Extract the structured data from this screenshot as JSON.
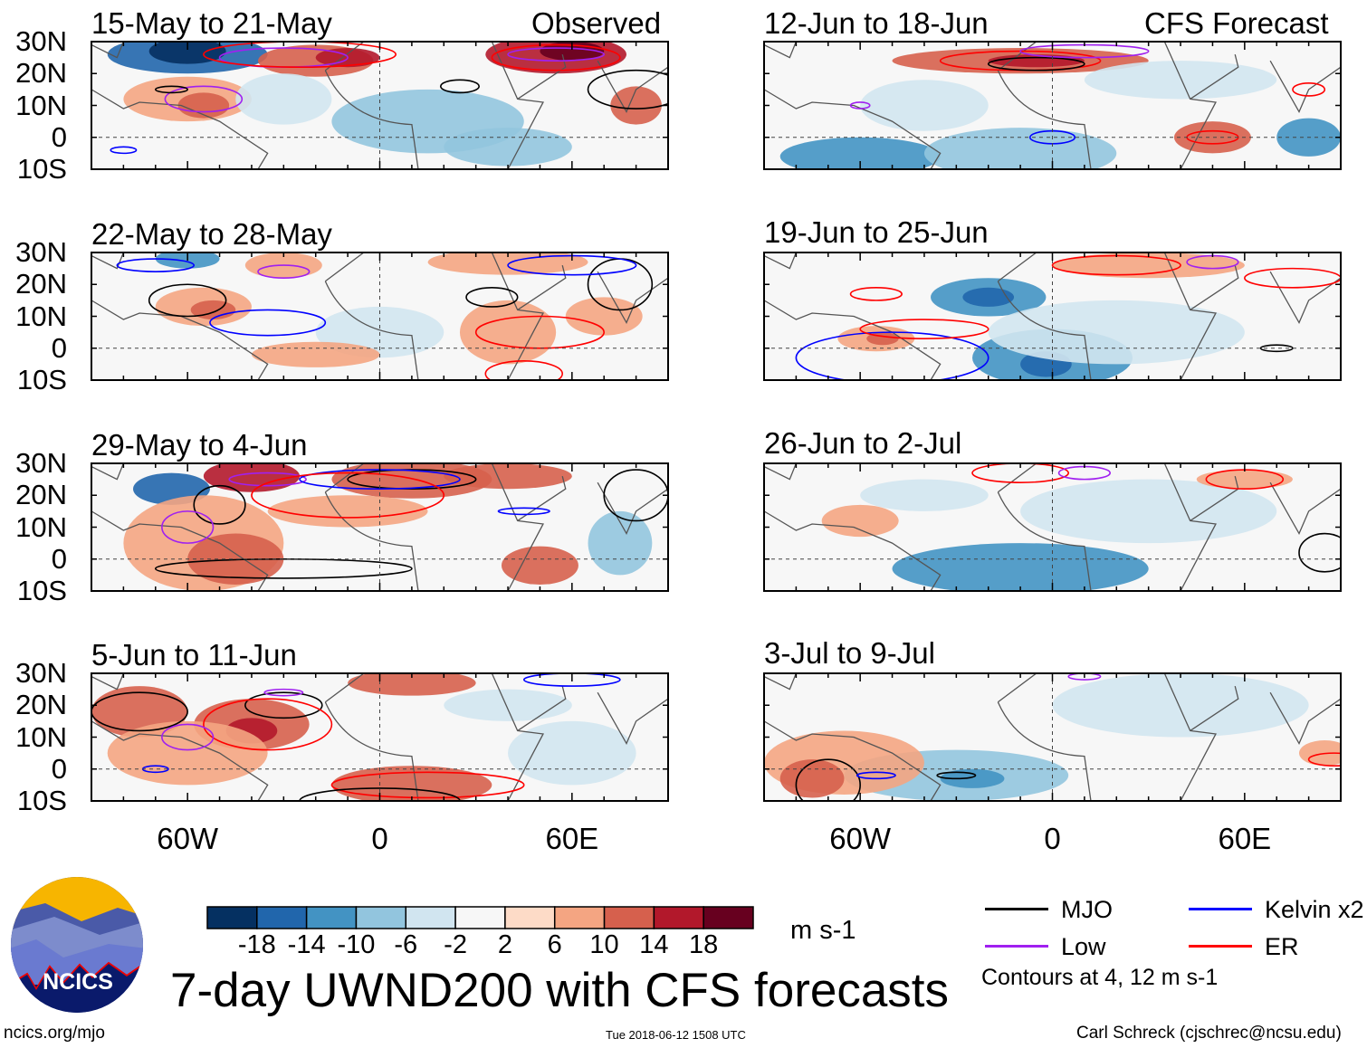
{
  "panels": {
    "observed_label": "Observed",
    "forecast_label": "CFS Forecast",
    "left": [
      {
        "title": "15-May to 21-May"
      },
      {
        "title": "22-May to 28-May"
      },
      {
        "title": "29-May to 4-Jun"
      },
      {
        "title": "5-Jun to 11-Jun"
      }
    ],
    "right": [
      {
        "title": "12-Jun to 18-Jun"
      },
      {
        "title": "19-Jun to 25-Jun"
      },
      {
        "title": "26-Jun to 2-Jul"
      },
      {
        "title": "3-Jul to 9-Jul"
      }
    ],
    "lat_labels": [
      "30N",
      "20N",
      "10N",
      "0",
      "10S"
    ],
    "lon_labels": [
      "60W",
      "0",
      "60E"
    ]
  },
  "colorbar": {
    "colors": [
      "#053061",
      "#2166ac",
      "#4393c3",
      "#92c5de",
      "#d1e5f0",
      "#f7f7f7",
      "#fddbc7",
      "#f4a582",
      "#d6604d",
      "#b2182b",
      "#67001f"
    ],
    "labels": [
      "-18",
      "-14",
      "-10",
      "-6",
      "-2",
      "2",
      "6",
      "10",
      "14",
      "18"
    ],
    "units": "m s-1"
  },
  "title": "7-day UWND200 with CFS forecasts",
  "legend": {
    "items": [
      {
        "label": "MJO",
        "color": "#000000"
      },
      {
        "label": "Kelvin x2",
        "color": "#0000ff"
      },
      {
        "label": "Low",
        "color": "#a020f0"
      },
      {
        "label": "ER",
        "color": "#ff0000"
      }
    ],
    "note": "Contours at 4, 12 m s-1"
  },
  "logo": {
    "text": "NCICS"
  },
  "footer": {
    "url": "ncics.org/mjo",
    "timestamp": "Tue 2018-06-12 1508 UTC",
    "credit": "Carl Schreck (cjschrec@ncsu.edu)"
  }
}
